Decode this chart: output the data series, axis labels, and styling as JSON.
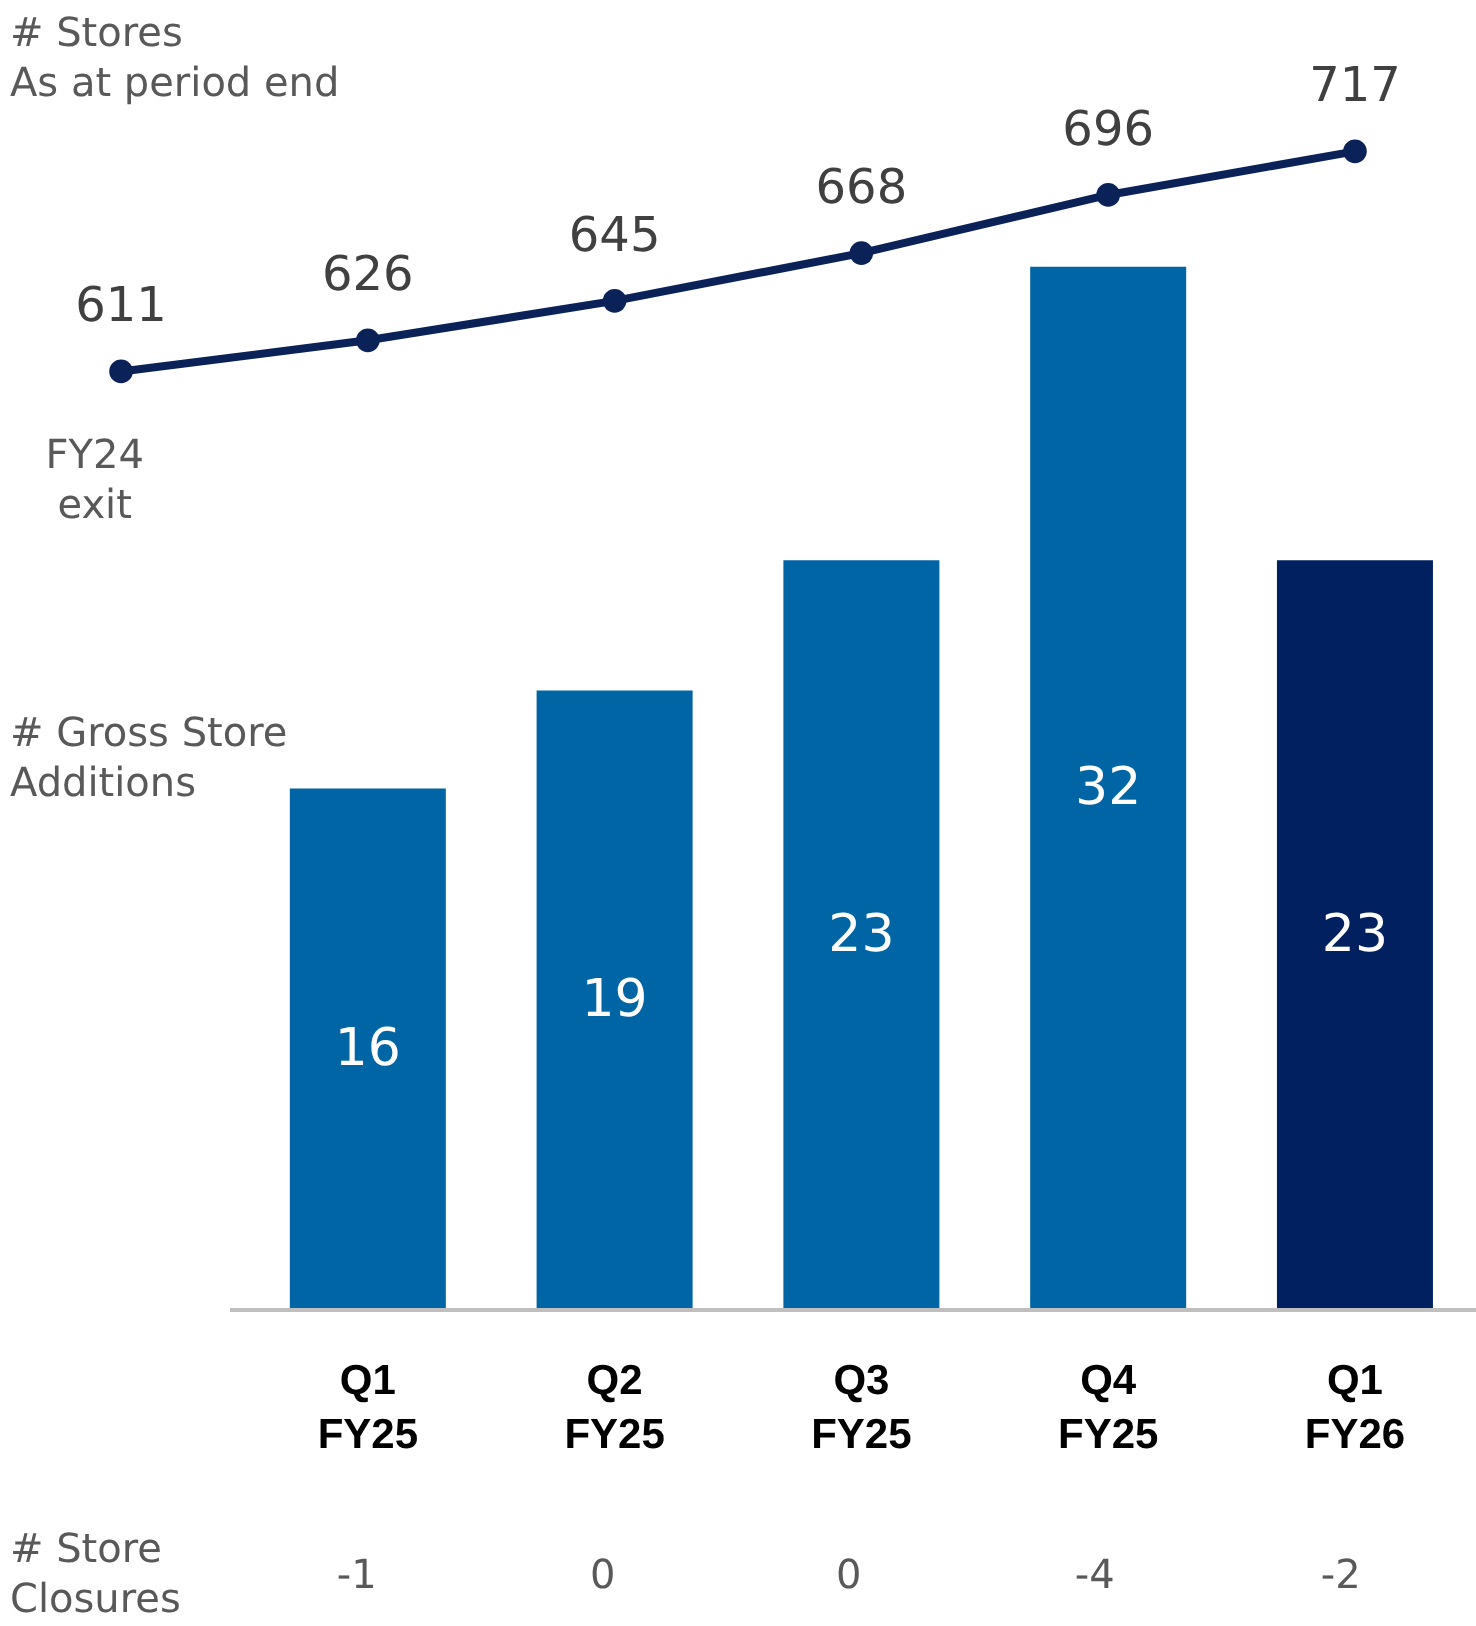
{
  "chart_data": {
    "type": "bar",
    "categories": [
      null,
      "Q1\nFY25",
      "Q2\nFY25",
      "Q3\nFY25",
      "Q4\nFY25",
      "Q1\nFY26"
    ],
    "ylabel": "# Gross Store\nAdditions",
    "y2label": "# Stores\nAs at period end",
    "series": [
      {
        "values": [
          null,
          16,
          19,
          23,
          32,
          23
        ],
        "colors": [
          null,
          "#0065a4",
          "#0065a4",
          "#0065a4",
          "#0065a4",
          "#002060"
        ]
      },
      {
        "type": "line",
        "axis": "y2",
        "color": "#0a2258",
        "marker": "circle",
        "values": [
          611,
          626,
          645,
          668,
          696,
          717
        ]
      }
    ],
    "data_labels": true,
    "ylim": [
      0,
      40
    ],
    "y2lim": [
      159,
      787
    ],
    "tick_labels": false,
    "annotations": [
      "FY24\nexit",
      "# Store\nClosures",
      "-1",
      "0",
      "0",
      "-4",
      "-2"
    ]
  }
}
